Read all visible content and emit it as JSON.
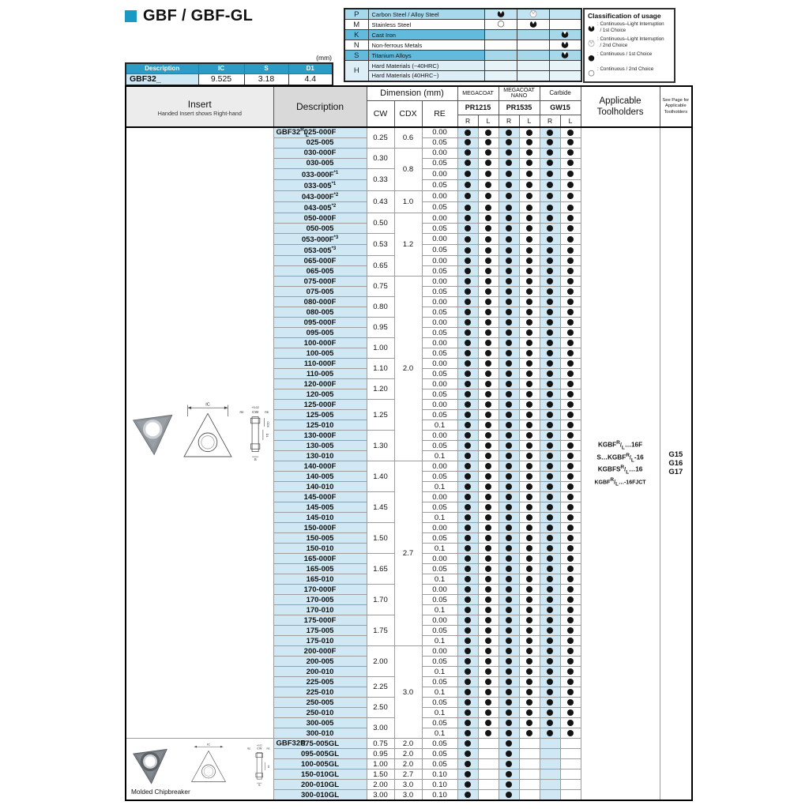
{
  "page": {
    "title": "GBF / GBF-GL"
  },
  "palette": {
    "accent": "#1a99c3",
    "header_teal": "#2a9cc5",
    "pale_blue": "#cfe8f4",
    "mid_blue": "#a6d9ec",
    "dark_blue": "#62bbdc",
    "lighter_blue": "#ddeef7"
  },
  "spec_table": {
    "unit": "(mm)",
    "headers": [
      "Description",
      "IC",
      "S",
      "D1"
    ],
    "row": [
      "GBF32_",
      "9.525",
      "3.18",
      "4.4"
    ]
  },
  "material_table": {
    "rows": [
      {
        "letter": "P",
        "rowspan": 1,
        "name": "Carbon Steel / Alloy Steel",
        "shade": "mid",
        "cols": [
          "pac-filled",
          "pac-open",
          ""
        ]
      },
      {
        "letter": "M",
        "rowspan": 1,
        "name": "Stainless Steel",
        "shade": "white",
        "cols": [
          "circle-open",
          "pac-filled",
          ""
        ]
      },
      {
        "letter": "K",
        "rowspan": 1,
        "name": "Cast Iron",
        "shade": "dark",
        "cols": [
          "",
          "",
          "pac-filled"
        ]
      },
      {
        "letter": "N",
        "rowspan": 1,
        "name": "Non-ferrous Metals",
        "shade": "white",
        "cols": [
          "",
          "",
          "pac-filled"
        ]
      },
      {
        "letter": "S",
        "rowspan": 1,
        "name": "Titanium Alloys",
        "shade": "dark",
        "cols": [
          "",
          "",
          "pac-filled"
        ]
      },
      {
        "letter": "H",
        "rowspan": 2,
        "name": "Hard Materials (~40HRC)",
        "shade": "light",
        "cols": [
          "",
          "",
          ""
        ]
      },
      {
        "letter": null,
        "rowspan": 0,
        "name": "Hard Materials (40HRC~)",
        "shade": "light",
        "cols": [
          "",
          "",
          ""
        ]
      }
    ]
  },
  "legend": {
    "title": "Classification of usage",
    "items": [
      {
        "symbol": "pac-filled",
        "lines": [
          "Continuous–Light Interruption",
          "/ 1st Choice"
        ]
      },
      {
        "symbol": "pac-open",
        "lines": [
          "Continuous–Light Interruption",
          "/ 2nd Choice"
        ]
      },
      {
        "symbol": "circle-filled",
        "lines": [
          "Continuous / 1st Choice"
        ]
      },
      {
        "symbol": "circle-open",
        "lines": [
          "Continuous / 2nd Choice"
        ]
      }
    ]
  },
  "insert_drawing": {
    "ic": "IC",
    "cw": "CW",
    "re": "RE",
    "cdx": "CDX",
    "d1": "D1",
    "s": "S",
    "tol": "+0.02"
  },
  "main_table": {
    "headers": {
      "insert": "Insert",
      "insert_sub": "Handed Insert shows Right-hand",
      "description": "Description",
      "dimension": "Dimension (mm)",
      "cw": "CW",
      "cdx": "CDX",
      "re": "RE",
      "toolholders": "Applicable Toolholders",
      "seepage": "See Page for Applicable Toolholders"
    },
    "rl": [
      "R",
      "L"
    ],
    "brands": [
      {
        "name": "MEGACOAT",
        "grade": "PR1215"
      },
      {
        "name": "MEGACOAT NANO",
        "grade": "PR1535"
      },
      {
        "name": "Carbide",
        "grade": "GW15"
      }
    ],
    "prefix": "GBF32{RL}",
    "dots_default": [
      1,
      1,
      1,
      1,
      1,
      1
    ],
    "cdx_groups": [
      {
        "cdx": "0.6",
        "cw_groups": [
          {
            "cw": "0.25",
            "rows": [
              {
                "d": "025-000F",
                "re": "0.00"
              },
              {
                "d": "025-005",
                "re": "0.05"
              }
            ]
          }
        ]
      },
      {
        "cdx": "0.8",
        "cw_groups": [
          {
            "cw": "0.30",
            "rows": [
              {
                "d": "030-000F",
                "re": "0.00"
              },
              {
                "d": "030-005",
                "re": "0.05"
              }
            ]
          },
          {
            "cw": "0.33",
            "rows": [
              {
                "d": "033-000F",
                "note": "*1",
                "re": "0.00"
              },
              {
                "d": "033-005",
                "note": "*1",
                "re": "0.05"
              }
            ]
          }
        ]
      },
      {
        "cdx": "1.0",
        "cw_groups": [
          {
            "cw": "0.43",
            "rows": [
              {
                "d": "043-000F",
                "note": "*2",
                "re": "0.00"
              },
              {
                "d": "043-005",
                "note": "*2",
                "re": "0.05"
              }
            ]
          }
        ]
      },
      {
        "cdx": "1.2",
        "cw_groups": [
          {
            "cw": "0.50",
            "rows": [
              {
                "d": "050-000F",
                "re": "0.00"
              },
              {
                "d": "050-005",
                "re": "0.05"
              }
            ]
          },
          {
            "cw": "0.53",
            "rows": [
              {
                "d": "053-000F",
                "note": "*3",
                "re": "0.00"
              },
              {
                "d": "053-005",
                "note": "*3",
                "re": "0.05"
              }
            ]
          },
          {
            "cw": "0.65",
            "rows": [
              {
                "d": "065-000F",
                "re": "0.00"
              },
              {
                "d": "065-005",
                "re": "0.05"
              }
            ]
          }
        ]
      },
      {
        "cdx": "2.0",
        "cw_groups": [
          {
            "cw": "0.75",
            "rows": [
              {
                "d": "075-000F",
                "re": "0.00"
              },
              {
                "d": "075-005",
                "re": "0.05"
              }
            ]
          },
          {
            "cw": "0.80",
            "rows": [
              {
                "d": "080-000F",
                "re": "0.00"
              },
              {
                "d": "080-005",
                "re": "0.05"
              }
            ]
          },
          {
            "cw": "0.95",
            "rows": [
              {
                "d": "095-000F",
                "re": "0.00"
              },
              {
                "d": "095-005",
                "re": "0.05"
              }
            ]
          },
          {
            "cw": "1.00",
            "rows": [
              {
                "d": "100-000F",
                "re": "0.00"
              },
              {
                "d": "100-005",
                "re": "0.05"
              }
            ]
          },
          {
            "cw": "1.10",
            "rows": [
              {
                "d": "110-000F",
                "re": "0.00"
              },
              {
                "d": "110-005",
                "re": "0.05"
              }
            ]
          },
          {
            "cw": "1.20",
            "rows": [
              {
                "d": "120-000F",
                "re": "0.00"
              },
              {
                "d": "120-005",
                "re": "0.05"
              }
            ]
          },
          {
            "cw": "1.25",
            "rows": [
              {
                "d": "125-000F",
                "re": "0.00"
              },
              {
                "d": "125-005",
                "re": "0.05"
              },
              {
                "d": "125-010",
                "re": "0.1"
              }
            ]
          },
          {
            "cw": "1.30",
            "rows": [
              {
                "d": "130-000F",
                "re": "0.00"
              },
              {
                "d": "130-005",
                "re": "0.05"
              },
              {
                "d": "130-010",
                "re": "0.1"
              }
            ]
          }
        ]
      },
      {
        "cdx": "2.7",
        "cw_groups": [
          {
            "cw": "1.40",
            "rows": [
              {
                "d": "140-000F",
                "re": "0.00"
              },
              {
                "d": "140-005",
                "re": "0.05"
              },
              {
                "d": "140-010",
                "re": "0.1"
              }
            ]
          },
          {
            "cw": "1.45",
            "rows": [
              {
                "d": "145-000F",
                "re": "0.00"
              },
              {
                "d": "145-005",
                "re": "0.05"
              },
              {
                "d": "145-010",
                "re": "0.1"
              }
            ]
          },
          {
            "cw": "1.50",
            "rows": [
              {
                "d": "150-000F",
                "re": "0.00"
              },
              {
                "d": "150-005",
                "re": "0.05"
              },
              {
                "d": "150-010",
                "re": "0.1"
              }
            ]
          },
          {
            "cw": "1.65",
            "rows": [
              {
                "d": "165-000F",
                "re": "0.00"
              },
              {
                "d": "165-005",
                "re": "0.05"
              },
              {
                "d": "165-010",
                "re": "0.1"
              }
            ]
          },
          {
            "cw": "1.70",
            "rows": [
              {
                "d": "170-000F",
                "re": "0.00"
              },
              {
                "d": "170-005",
                "re": "0.05"
              },
              {
                "d": "170-010",
                "re": "0.1"
              }
            ]
          },
          {
            "cw": "1.75",
            "rows": [
              {
                "d": "175-000F",
                "re": "0.00"
              },
              {
                "d": "175-005",
                "re": "0.05"
              },
              {
                "d": "175-010",
                "re": "0.1"
              }
            ]
          }
        ]
      },
      {
        "cdx": "3.0",
        "cw_groups": [
          {
            "cw": "2.00",
            "rows": [
              {
                "d": "200-000F",
                "re": "0.00"
              },
              {
                "d": "200-005",
                "re": "0.05"
              },
              {
                "d": "200-010",
                "re": "0.1"
              }
            ]
          },
          {
            "cw": "2.25",
            "rows": [
              {
                "d": "225-005",
                "re": "0.05"
              },
              {
                "d": "225-010",
                "re": "0.1"
              }
            ]
          },
          {
            "cw": "2.50",
            "rows": [
              {
                "d": "250-005",
                "re": "0.05"
              },
              {
                "d": "250-010",
                "re": "0.1"
              }
            ]
          },
          {
            "cw": "3.00",
            "rows": [
              {
                "d": "300-005",
                "re": "0.05"
              },
              {
                "d": "300-010",
                "re": "0.1"
              }
            ]
          }
        ]
      }
    ],
    "gl_block": {
      "prefix": "GBF32R",
      "caption": "Molded Chipbreaker",
      "rows": [
        {
          "d": "075-005GL",
          "cw": "0.75",
          "cdx": "2.0",
          "re": "0.05",
          "dots": [
            1,
            0,
            1,
            0,
            0,
            0
          ]
        },
        {
          "d": "095-005GL",
          "cw": "0.95",
          "cdx": "2.0",
          "re": "0.05",
          "dots": [
            1,
            0,
            1,
            0,
            0,
            0
          ]
        },
        {
          "d": "100-005GL",
          "cw": "1.00",
          "cdx": "2.0",
          "re": "0.05",
          "dots": [
            1,
            0,
            1,
            0,
            0,
            0
          ]
        },
        {
          "d": "150-010GL",
          "cw": "1.50",
          "cdx": "2.7",
          "re": "0.10",
          "dots": [
            1,
            0,
            1,
            0,
            0,
            0
          ]
        },
        {
          "d": "200-010GL",
          "cw": "2.00",
          "cdx": "3.0",
          "re": "0.10",
          "dots": [
            1,
            0,
            1,
            0,
            0,
            0
          ]
        },
        {
          "d": "300-010GL",
          "cw": "3.00",
          "cdx": "3.0",
          "re": "0.10",
          "dots": [
            1,
            0,
            1,
            0,
            0,
            0
          ]
        }
      ]
    },
    "toolholders": [
      "KGBF{RL}…16F",
      "S…KGBF{RL}-16",
      "KGBFS{RL}…16",
      "KGBF{RL}…-16FJCT"
    ],
    "pages": [
      "G15",
      "G16",
      "G17"
    ]
  }
}
